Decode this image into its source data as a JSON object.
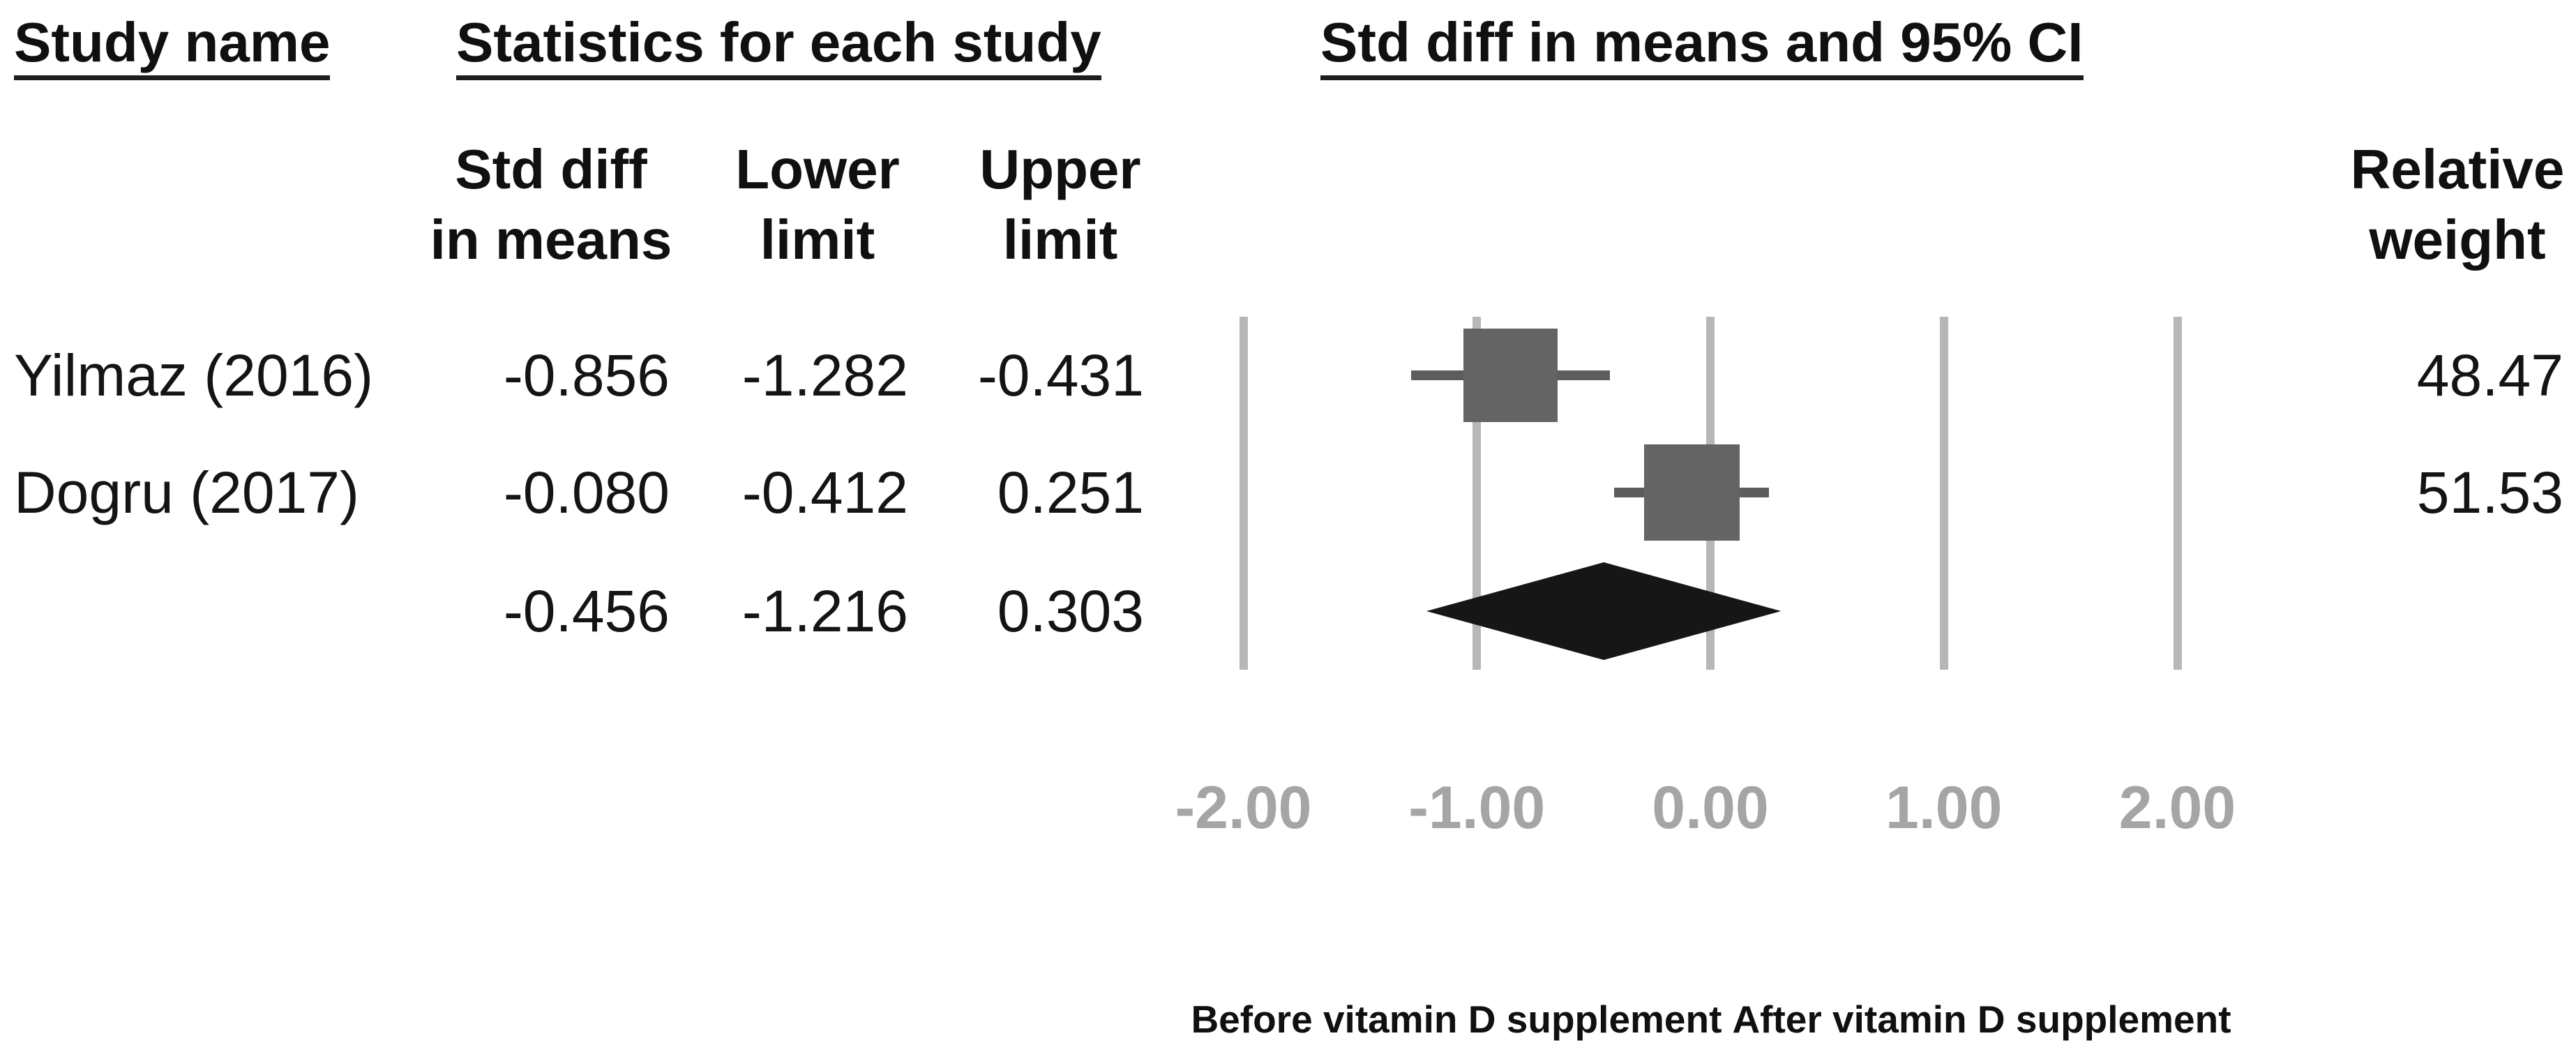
{
  "figure": {
    "headers": {
      "study_name": "Study name",
      "statistics": "Statistics for each study",
      "plot": "Std diff in means and 95% CI"
    },
    "columns": {
      "std_diff": "Std diff\nin means",
      "lower": "Lower\nlimit",
      "upper": "Upper\nlimit",
      "relative_weight": "Relative\nweight"
    },
    "footer": {
      "left_label": "Before vitamin D supplement",
      "right_label": "After vitamin D supplement"
    }
  },
  "chart_data": {
    "type": "forest",
    "title": "Std diff in means and 95% CI",
    "effect_measure": "Std diff in means",
    "studies": [
      {
        "name": "Yilmaz (2016)",
        "std_diff_in_means": -0.856,
        "lower_limit": -1.282,
        "upper_limit": -0.431,
        "relative_weight": 48.47
      },
      {
        "name": "Dogru (2017)",
        "std_diff_in_means": -0.08,
        "lower_limit": -0.412,
        "upper_limit": 0.251,
        "relative_weight": 51.53
      }
    ],
    "summary": {
      "std_diff_in_means": -0.456,
      "lower_limit": -1.216,
      "upper_limit": 0.303
    },
    "x_ticks": [
      -2.0,
      -1.0,
      0.0,
      1.0,
      2.0
    ],
    "x_tick_labels": [
      "-2.00",
      "-1.00",
      "0.00",
      "1.00",
      "2.00"
    ],
    "xlim": [
      -2.65,
      2.65
    ],
    "grid": "vertical-gridlines-at-ticks",
    "legend_position": "none",
    "axis_direction_labels": {
      "left_of_zero": "Before vitamin D supplement",
      "right_of_zero": "After vitamin D supplement"
    }
  },
  "colors": {
    "background": "#ffffff",
    "text": "#111111",
    "marker_square": "#646464",
    "whisker": "#5d5d5d",
    "gridline": "#b7b7b7",
    "tick_label": "#a5a5a5",
    "diamond": "#161616"
  }
}
